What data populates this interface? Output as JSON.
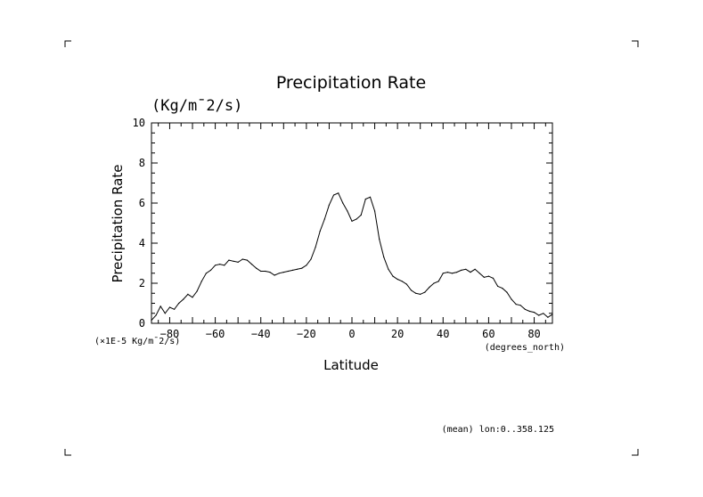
{
  "chart_data": {
    "type": "line",
    "title": "Precipitation Rate",
    "units_label": "(Kg/m¯2/s)",
    "ylabel": "Precipitation Rate",
    "xlabel": "Latitude",
    "x_units": "(degrees_north)",
    "scale_note": "(×1E-5 Kg/m¯2/s)",
    "footnote": "(mean) lon:0..358.125",
    "xlim": [
      -88,
      88
    ],
    "ylim": [
      0,
      10
    ],
    "x_ticks": [
      -80,
      -60,
      -40,
      -20,
      0,
      20,
      40,
      60,
      80
    ],
    "x_tick_labels": [
      "−80",
      "−60",
      "−40",
      "−20",
      "0",
      "20",
      "40",
      "60",
      "80"
    ],
    "y_ticks": [
      0,
      2,
      4,
      6,
      8,
      10
    ],
    "y_tick_labels": [
      "0",
      "2",
      "4",
      "6",
      "8",
      "10"
    ],
    "grid": false,
    "series": [
      {
        "x": [
          -88,
          -86,
          -84,
          -82,
          -80,
          -78,
          -76,
          -74,
          -72,
          -70,
          -68,
          -66,
          -64,
          -62,
          -60,
          -58,
          -56,
          -54,
          -52,
          -50,
          -48,
          -46,
          -44,
          -42,
          -40,
          -38,
          -36,
          -34,
          -32,
          -30,
          -28,
          -26,
          -24,
          -22,
          -20,
          -18,
          -16,
          -14,
          -12,
          -10,
          -8,
          -6,
          -4,
          -2,
          0,
          2,
          4,
          6,
          8,
          10,
          12,
          14,
          16,
          18,
          20,
          22,
          24,
          26,
          28,
          30,
          32,
          34,
          36,
          38,
          40,
          42,
          44,
          46,
          48,
          50,
          52,
          54,
          56,
          58,
          60,
          62,
          64,
          66,
          68,
          70,
          72,
          74,
          76,
          78,
          80,
          82,
          84,
          86,
          88
        ],
        "values": [
          0.15,
          0.4,
          0.85,
          0.5,
          0.8,
          0.7,
          1.0,
          1.2,
          1.45,
          1.3,
          1.6,
          2.1,
          2.5,
          2.65,
          2.9,
          2.95,
          2.9,
          3.15,
          3.1,
          3.05,
          3.2,
          3.15,
          2.95,
          2.75,
          2.6,
          2.6,
          2.55,
          2.4,
          2.5,
          2.55,
          2.6,
          2.65,
          2.7,
          2.75,
          2.9,
          3.2,
          3.8,
          4.6,
          5.2,
          5.9,
          6.4,
          6.5,
          6.0,
          5.6,
          5.1,
          5.2,
          5.4,
          6.2,
          6.3,
          5.6,
          4.2,
          3.3,
          2.7,
          2.35,
          2.2,
          2.1,
          1.95,
          1.65,
          1.5,
          1.45,
          1.55,
          1.8,
          2.0,
          2.1,
          2.5,
          2.55,
          2.5,
          2.55,
          2.65,
          2.7,
          2.55,
          2.7,
          2.5,
          2.3,
          2.35,
          2.25,
          1.85,
          1.75,
          1.55,
          1.2,
          0.95,
          0.9,
          0.7,
          0.6,
          0.55,
          0.4,
          0.5,
          0.3,
          0.45
        ]
      }
    ]
  }
}
